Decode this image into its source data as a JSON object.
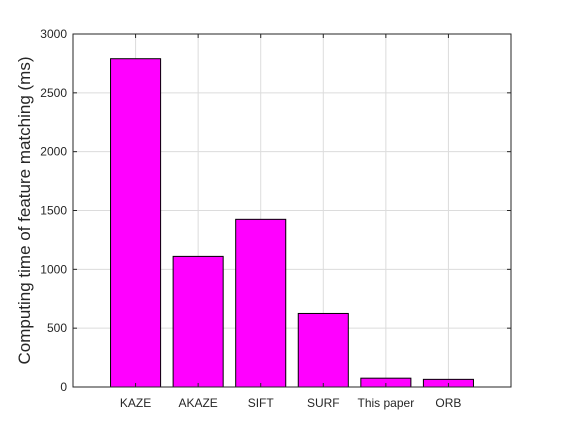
{
  "chart_data": {
    "type": "bar",
    "categories": [
      "KAZE",
      "AKAZE",
      "SIFT",
      "SURF",
      "This paper",
      "ORB"
    ],
    "values": [
      2790,
      1110,
      1425,
      625,
      75,
      65
    ],
    "title": "",
    "xlabel": "",
    "ylabel": "Computing time of feature matching (ms)",
    "ylim": [
      0,
      3000
    ],
    "yticks": [
      0,
      500,
      1000,
      1500,
      2000,
      2500,
      3000
    ],
    "grid": true,
    "bar_color": "#ff00ff",
    "bar_edge_color": "#000000"
  }
}
